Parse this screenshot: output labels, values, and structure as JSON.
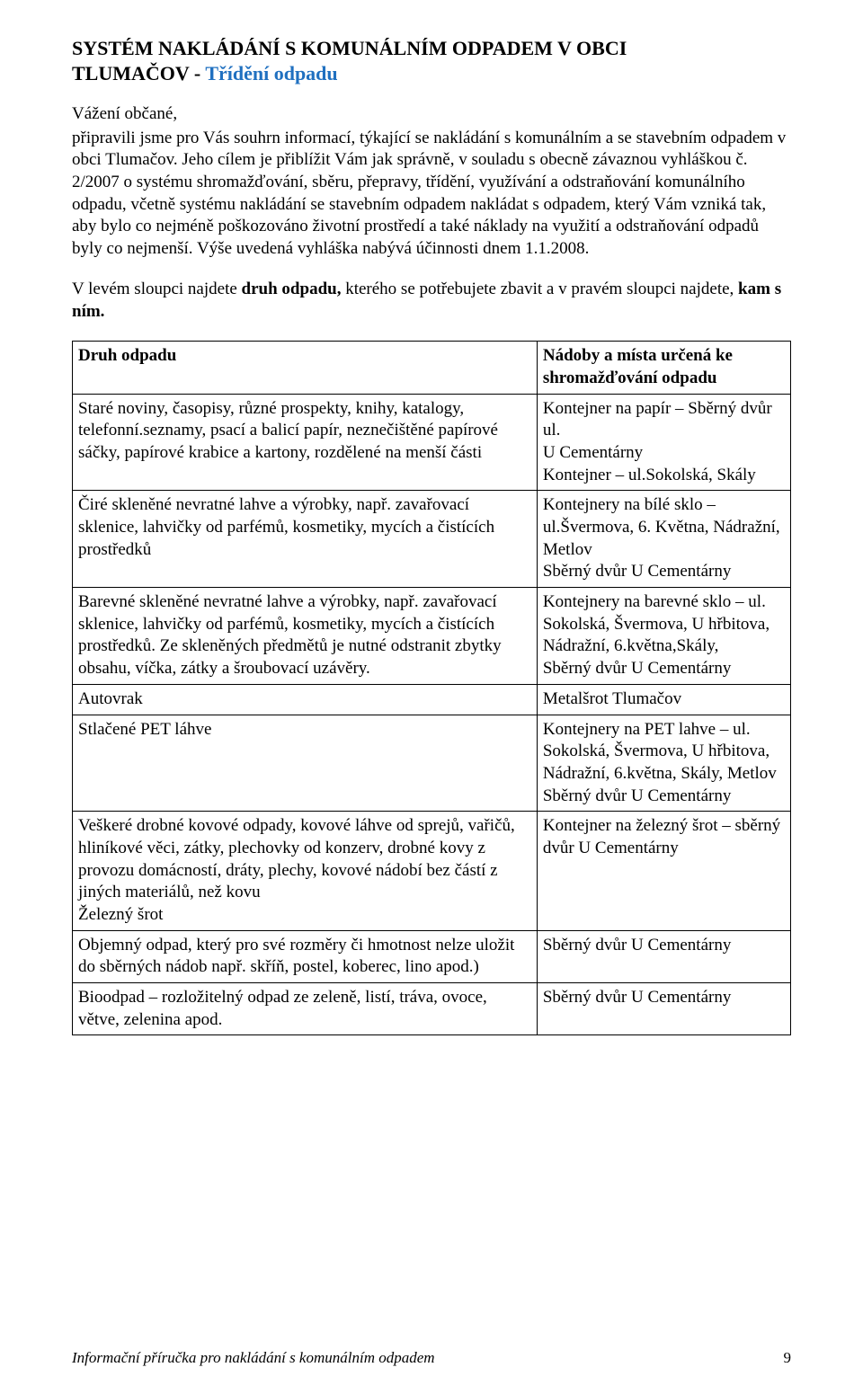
{
  "title": {
    "line1": "SYSTÉM NAKLÁDÁNÍ S KOMUNÁLNÍM ODPADEM V OBCI",
    "line2_prefix": "TLUMAČOV   -   ",
    "line2_highlight": "Třídění odpadu",
    "highlight_color": "#2070c0"
  },
  "salutation": "Vážení občané,",
  "intro": "připravili jsme pro Vás souhrn informací, týkající se nakládání s komunálním a se stavebním odpadem v obci Tlumačov. Jeho cílem je přiblížit Vám jak správně, v souladu s obecně závaznou vyhláškou č. 2/2007 o systému shromažďování, sběru, přepravy, třídění, využívání a odstraňování komunálního odpadu, včetně systému nakládání se stavebním odpadem nakládat s odpadem, který Vám vzniká tak, aby bylo co nejméně poškozováno životní prostředí a také náklady na využití a odstraňování odpadů byly co nejmenší. Výše uvedená vyhláška nabývá účinnosti dnem 1.1.2008.",
  "lead_sentence": {
    "pre": "V levém sloupci najdete ",
    "bold1": "druh odpadu,",
    "mid": " kterého se potřebujete zbavit a v pravém sloupci najdete, ",
    "bold2": "kam s ním."
  },
  "table": {
    "headers": {
      "left": "Druh odpadu",
      "right": "Nádoby a místa určená ke shromažďování odpadu"
    },
    "rows": [
      {
        "left": "Staré noviny, časopisy, různé prospekty, knihy, katalogy, telefonní.seznamy, psací a balicí papír, neznečištěné papírové sáčky, papírové krabice a kartony, rozdělené na menší části",
        "right": "Kontejner na papír – Sběrný dvůr ul.\nU Cementárny\nKontejner – ul.Sokolská, Skály"
      },
      {
        "left": "Čiré skleněné nevratné lahve a výrobky, např. zavařovací sklenice, lahvičky od parfémů, kosmetiky, mycích a čistících prostředků",
        "right": "Kontejnery na bílé sklo –\nul.Švermova, 6. Května, Nádražní, Metlov\nSběrný dvůr U Cementárny"
      },
      {
        "left": "Barevné skleněné nevratné lahve a výrobky, např. zavařovací sklenice, lahvičky od parfémů, kosmetiky, mycích a čistících prostředků. Ze skleněných předmětů je nutné odstranit zbytky obsahu, víčka, zátky a šroubovací uzávěry.",
        "right": "Kontejnery na barevné sklo – ul. Sokolská, Švermova, U hřbitova, Nádražní, 6.května,Skály,\nSběrný dvůr  U Cementárny"
      },
      {
        "left": "Autovrak",
        "right": "Metalšrot Tlumačov"
      },
      {
        "left": "Stlačené PET láhve",
        "right": "Kontejnery na PET lahve – ul. Sokolská, Švermova, U hřbitova, Nádražní, 6.května, Skály, Metlov\nSběrný dvůr U Cementárny"
      },
      {
        "left": "Veškeré drobné kovové odpady, kovové láhve od sprejů, vařičů, hliníkové věci, zátky, plechovky od konzerv, drobné kovy z provozu domácností, dráty, plechy, kovové nádobí bez částí z jiných materiálů, než kovu\nŽelezný šrot",
        "right": "Kontejner na železný šrot – sběrný dvůr U Cementárny"
      },
      {
        "left": "Objemný odpad, který pro své rozměry či hmotnost nelze uložit do sběrných nádob např. skříň, postel, koberec, lino apod.)",
        "right": "Sběrný dvůr U Cementárny"
      },
      {
        "left": "Bioodpad – rozložitelný odpad  ze zeleně, listí, tráva, ovoce, větve, zelenina apod.",
        "right": "Sběrný dvůr U Cementárny"
      }
    ]
  },
  "footer": {
    "text": "Informační příručka pro nakládání s komunálním odpadem",
    "page": "9"
  },
  "styles": {
    "body_font": "Times New Roman",
    "background": "#ffffff",
    "text_color": "#000000",
    "title_fontsize_pt": 17,
    "body_fontsize_pt": 14,
    "border_color": "#000000"
  }
}
